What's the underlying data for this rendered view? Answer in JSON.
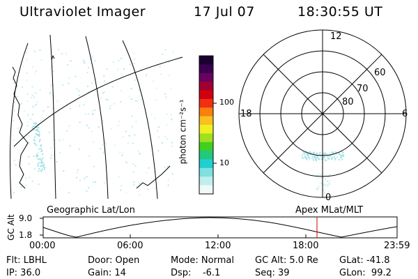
{
  "header": {
    "title": "Ultraviolet Imager",
    "date": "17 Jul 07",
    "time": "18:30:55 UT"
  },
  "colorbar": {
    "unit_label": "photon cm⁻²s⁻¹",
    "tick_labels": [
      "100",
      "10"
    ],
    "colors": [
      "#1a0030",
      "#3a0050",
      "#6a0060",
      "#a00030",
      "#d00010",
      "#f03010",
      "#f88010",
      "#f8c020",
      "#f0f020",
      "#a0e020",
      "#40d020",
      "#20c880",
      "#20d0d0",
      "#80e0e0",
      "#c0eeee",
      "#f0f8f8"
    ]
  },
  "polar_plot": {
    "mlt_labels": {
      "top": "12",
      "left": "18",
      "right": "6",
      "bottom": "0"
    },
    "lat_labels": [
      "60",
      "70",
      "80"
    ]
  },
  "orbit_panel": {
    "left_title": "Geographic Lat/Lon",
    "right_title": "Apex MLat/MLT",
    "y_axis_label": "GC Alt",
    "y_ticks": [
      "9.0",
      "1.8"
    ],
    "x_ticks": [
      "00:00",
      "06:00",
      "12:00",
      "18:00",
      "23:59"
    ],
    "marker_color": "#cc0000"
  },
  "status": {
    "row1": {
      "flt": "Flt: LBHL",
      "door": "Door: Open",
      "mode": "Mode: Normal",
      "gc_alt": "GC Alt: 5.0 Re",
      "glat": "GLat: -41.8"
    },
    "row2": {
      "ip": "IP: 36.0",
      "gain": "Gain: 14",
      "dsp": "Dsp:    -6.1",
      "seq": "Seq: 39",
      "glon": "GLon:  99.2"
    }
  },
  "emission_color": "#9fe0e8"
}
